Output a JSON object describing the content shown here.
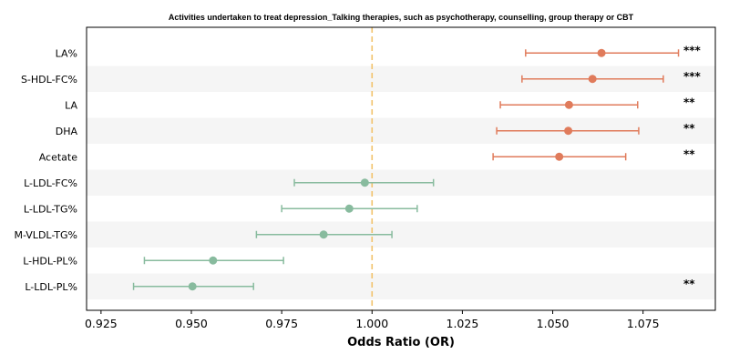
{
  "chart_data": {
    "type": "scatter",
    "subtype": "forest-plot",
    "title": "Activities undertaken to treat depression_Talking therapies, such as psychotherapy, counselling, group therapy or CBT",
    "xlabel": "Odds Ratio (OR)",
    "ylabel": "",
    "xlim": [
      0.921,
      1.095
    ],
    "xticks": [
      "0.925",
      "0.950",
      "0.975",
      "1.000",
      "1.025",
      "1.050",
      "1.075"
    ],
    "xtick_values": [
      0.925,
      0.95,
      0.975,
      1.0,
      1.025,
      1.05,
      1.075
    ],
    "reference_line": 1.0,
    "grid": false,
    "colors": {
      "positive": "#E07B5B",
      "negative": "#88BB9E",
      "reference": "#F2C26B",
      "stripe": "#F5F5F5"
    },
    "rows": [
      {
        "label": "LA%",
        "or": 1.0635,
        "lo": 1.0425,
        "hi": 1.0848,
        "sig": "***",
        "direction": "positive"
      },
      {
        "label": "S-HDL-FC%",
        "or": 1.061,
        "lo": 1.0415,
        "hi": 1.0806,
        "sig": "***",
        "direction": "positive"
      },
      {
        "label": "LA",
        "or": 1.0545,
        "lo": 1.0355,
        "hi": 1.0735,
        "sig": "**",
        "direction": "positive"
      },
      {
        "label": "DHA",
        "or": 1.0543,
        "lo": 1.0345,
        "hi": 1.0738,
        "sig": "**",
        "direction": "positive"
      },
      {
        "label": "Acetate",
        "or": 1.0518,
        "lo": 1.0335,
        "hi": 1.0702,
        "sig": "**",
        "direction": "positive"
      },
      {
        "label": "L-LDL-FC%",
        "or": 0.998,
        "lo": 0.9785,
        "hi": 1.017,
        "sig": "",
        "direction": "negative"
      },
      {
        "label": "L-LDL-TG%",
        "or": 0.9937,
        "lo": 0.975,
        "hi": 1.0125,
        "sig": "",
        "direction": "negative"
      },
      {
        "label": "M-VLDL-TG%",
        "or": 0.9866,
        "lo": 0.968,
        "hi": 1.0055,
        "sig": "",
        "direction": "negative"
      },
      {
        "label": "L-HDL-PL%",
        "or": 0.956,
        "lo": 0.937,
        "hi": 0.9755,
        "sig": "",
        "direction": "negative"
      },
      {
        "label": "L-LDL-PL%",
        "or": 0.9503,
        "lo": 0.934,
        "hi": 0.9672,
        "sig": "**",
        "direction": "negative"
      }
    ]
  }
}
